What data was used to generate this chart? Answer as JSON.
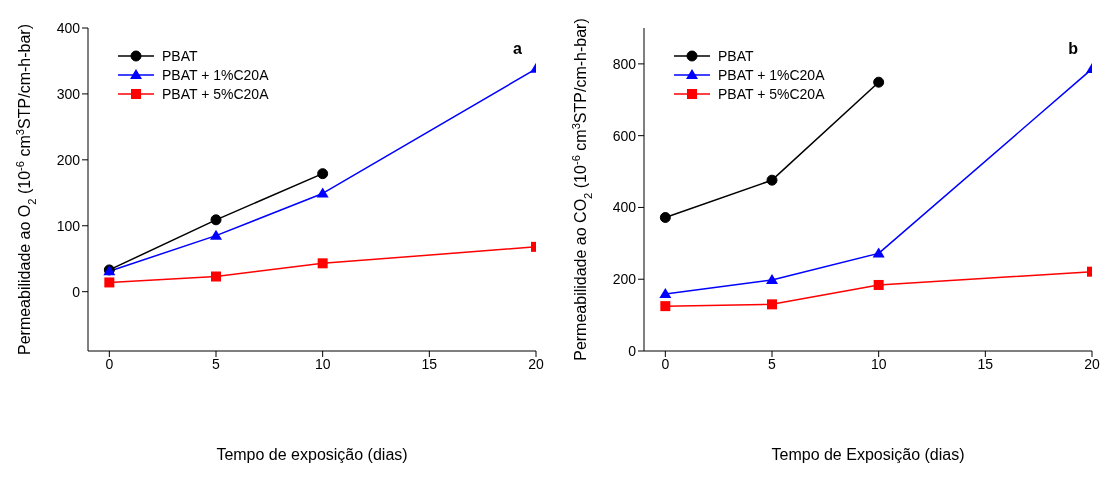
{
  "chart_data": [
    {
      "type": "line",
      "xlabel": "Tempo de exposição (dias)",
      "ylabel": "Permeabilidade ao O$_{2}$ (10$^{-6}$ cm$^{3}$STP/cm-h-bar)",
      "annotations": [
        "a"
      ],
      "x": [
        0,
        5,
        10,
        20
      ],
      "xlim": [
        -1,
        20
      ],
      "xticks": [
        0,
        5,
        10,
        15,
        20
      ],
      "ylim": [
        -90,
        400
      ],
      "yticks": [
        0,
        100,
        200,
        300,
        400
      ],
      "grid": false,
      "legend": "top left",
      "line_style": "solid",
      "series": [
        {
          "name": "PBAT",
          "color": "#000000",
          "marker": "circle",
          "x": [
            0,
            5,
            10
          ],
          "values": [
            33,
            109,
            179
          ]
        },
        {
          "name": "PBAT + 1%C20A",
          "color": "#0000ff",
          "marker": "triangle",
          "values": [
            31,
            85,
            149,
            338
          ]
        },
        {
          "name": "PBAT + 5%C20A",
          "color": "#ff0000",
          "marker": "square",
          "values": [
            14,
            23,
            43,
            68
          ]
        }
      ]
    },
    {
      "type": "line",
      "xlabel": "Tempo de Exposição (dias)",
      "ylabel": "Permeabilidade ao CO$_{2}$ (10$^{-6}$ cm$^{3}$STP/cm-h-bar)",
      "annotations": [
        "b"
      ],
      "x": [
        0,
        5,
        10,
        20
      ],
      "xlim": [
        -1,
        20
      ],
      "xticks": [
        0,
        5,
        10,
        15,
        20
      ],
      "ylim": [
        0,
        900
      ],
      "yticks": [
        0,
        200,
        400,
        600,
        800
      ],
      "grid": false,
      "legend": "top left",
      "line_style": "solid",
      "series": [
        {
          "name": "PBAT",
          "color": "#000000",
          "marker": "circle",
          "x": [
            0,
            5,
            10
          ],
          "values": [
            372,
            476,
            749
          ]
        },
        {
          "name": "PBAT + 1%C20A",
          "color": "#0000ff",
          "marker": "triangle",
          "values": [
            159,
            198,
            272,
            786
          ]
        },
        {
          "name": "PBAT + 5%C20A",
          "color": "#ff0000",
          "marker": "square",
          "values": [
            125,
            130,
            184,
            221
          ]
        }
      ]
    }
  ]
}
